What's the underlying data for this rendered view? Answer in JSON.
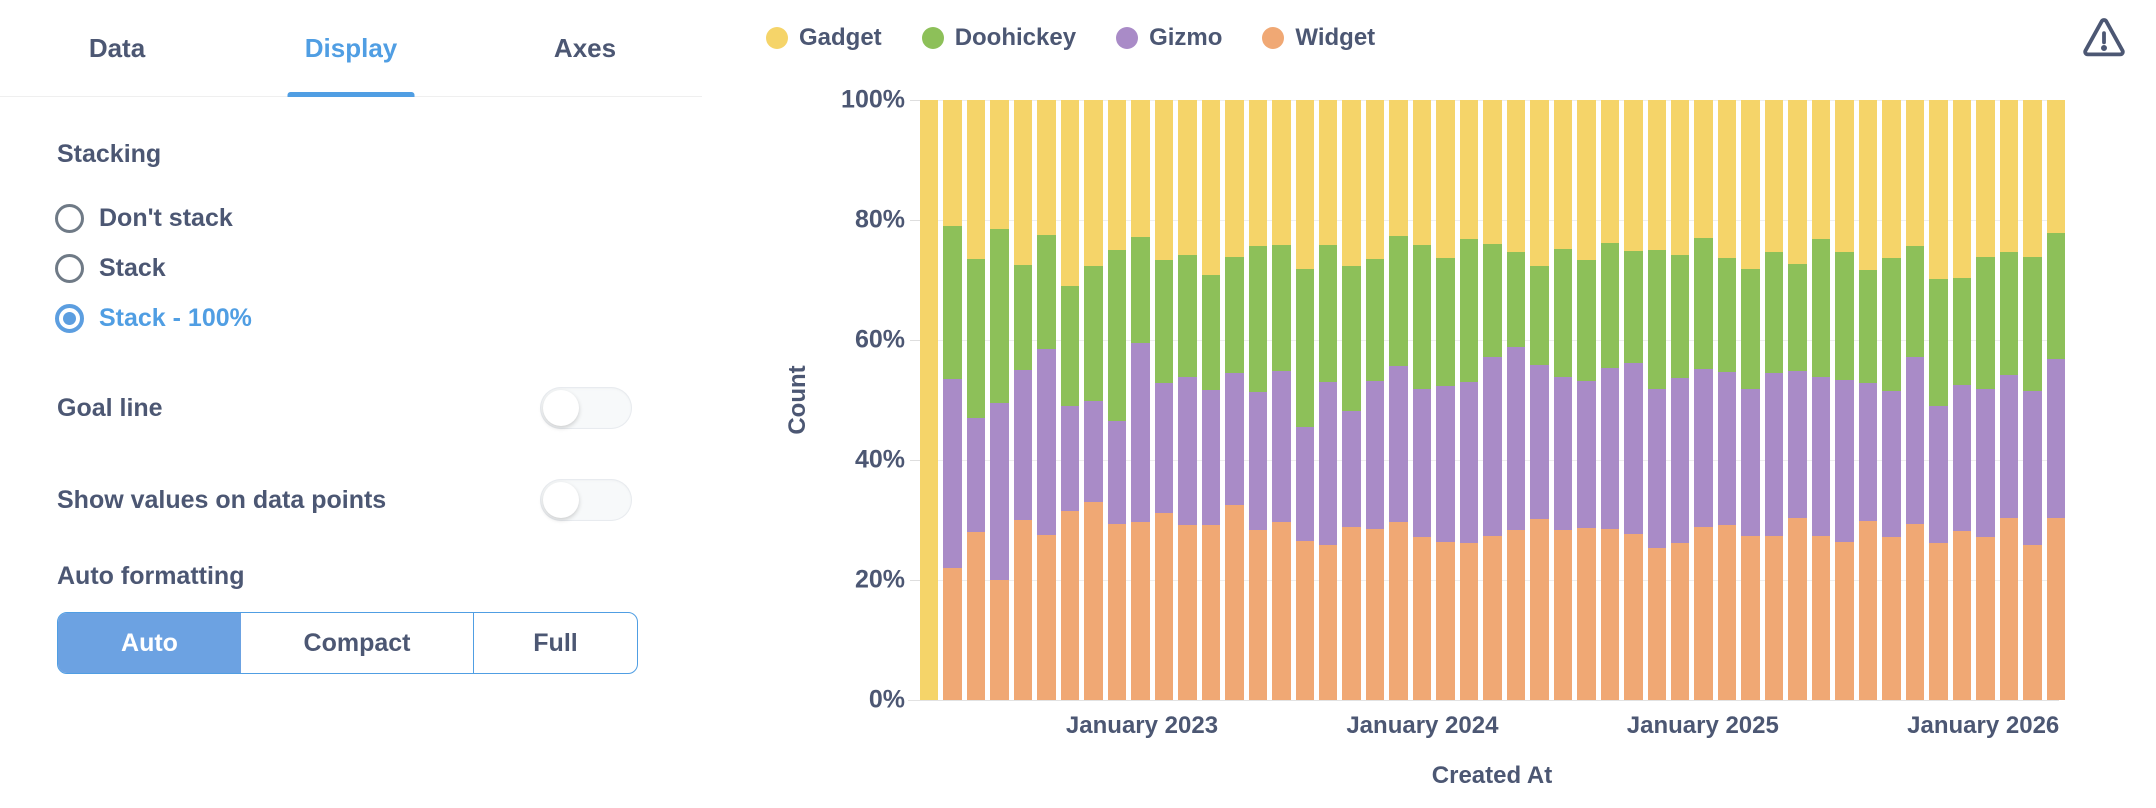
{
  "colors": {
    "accent_blue": "#509EE3",
    "selected_segment_blue": "#6CA2E2",
    "text_dark": "#4C5773",
    "gadget_yellow": "#F5D469",
    "doohickey_green": "#8DC059",
    "gizmo_purple": "#A98BC7",
    "widget_orange": "#F0A874"
  },
  "panel": {
    "tabs": [
      {
        "label": "Data",
        "active": false
      },
      {
        "label": "Display",
        "active": true
      },
      {
        "label": "Axes",
        "active": false
      }
    ],
    "stacking": {
      "label": "Stacking",
      "options": [
        {
          "label": "Don't stack",
          "selected": false
        },
        {
          "label": "Stack",
          "selected": false
        },
        {
          "label": "Stack - 100%",
          "selected": true
        }
      ]
    },
    "toggles": [
      {
        "label": "Goal line",
        "on": false
      },
      {
        "label": "Show values on data points",
        "on": false
      }
    ],
    "formatting": {
      "label": "Auto formatting",
      "options": [
        {
          "label": "Auto",
          "selected": true
        },
        {
          "label": "Compact",
          "selected": false
        },
        {
          "label": "Full",
          "selected": false
        }
      ]
    }
  },
  "chart_data": {
    "type": "bar",
    "stacking": "100%",
    "legend_position": "top-left",
    "grid": true,
    "xlabel": "Created At",
    "ylabel": "Count",
    "y_axis": {
      "title": "Count",
      "ticks": [
        "100%",
        "80%",
        "60%",
        "40%",
        "20%",
        "0%"
      ],
      "range": [
        0,
        100
      ]
    },
    "x_axis": {
      "title": "Created At",
      "bar_count": 49,
      "labels": [
        {
          "text": "January 2023",
          "index": 9
        },
        {
          "text": "January 2024",
          "index": 21
        },
        {
          "text": "January 2025",
          "index": 33
        },
        {
          "text": "January 2026",
          "index": 45
        }
      ]
    },
    "legend": [
      {
        "name": "Gadget",
        "color": "#F5D469"
      },
      {
        "name": "Doohickey",
        "color": "#8DC059"
      },
      {
        "name": "Gizmo",
        "color": "#A98BC7"
      },
      {
        "name": "Widget",
        "color": "#F0A874"
      }
    ],
    "stack_order_bottom_to_top": [
      "Widget",
      "Gizmo",
      "Doohickey",
      "Gadget"
    ],
    "series": [
      {
        "name": "Gadget",
        "color": "#F5D469",
        "values": [
          100,
          21,
          26.5,
          21.5,
          27.5,
          22.5,
          31,
          27.7,
          25,
          22.8,
          26.7,
          25.9,
          29.2,
          26.2,
          24.4,
          24.2,
          28.1,
          24.1,
          27.7,
          26.5,
          22.6,
          24.2,
          26.4,
          23.1,
          24,
          25.4,
          27.7,
          24.9,
          26.7,
          23.8,
          25.1,
          25,
          25.9,
          23,
          26.4,
          28.1,
          25.3,
          27.4,
          23.1,
          25.4,
          28.4,
          26.4,
          24.3,
          29.9,
          29.6,
          26.2,
          25.4,
          26.1,
          22.1
        ]
      },
      {
        "name": "Doohickey",
        "color": "#8DC059",
        "values": [
          0,
          25.5,
          26.5,
          29,
          17.5,
          19,
          20,
          22.5,
          28.5,
          17.7,
          20.5,
          20.2,
          19.2,
          19.3,
          24.3,
          20.9,
          26.4,
          22.9,
          24.2,
          20.4,
          21.8,
          24,
          21.3,
          23.9,
          18.8,
          15.7,
          16.5,
          21.3,
          20.2,
          20.8,
          18.8,
          23.1,
          20.5,
          21.9,
          19,
          20.1,
          20.2,
          17.8,
          23,
          21.3,
          18.8,
          22.1,
          18.6,
          21.1,
          17.9,
          21.9,
          20.5,
          22.4,
          21
        ]
      },
      {
        "name": "Gizmo",
        "color": "#A98BC7",
        "values": [
          0,
          31.5,
          19,
          29.5,
          25,
          31,
          17.5,
          16.8,
          17.1,
          29.9,
          21.6,
          24.7,
          22.4,
          22,
          23,
          25.2,
          19,
          27.1,
          19.3,
          24.6,
          25.9,
          24.7,
          26,
          26.9,
          29.8,
          30.5,
          25.6,
          25.5,
          24.4,
          26.9,
          28.4,
          26.5,
          27.5,
          26.3,
          25.4,
          24.4,
          27.1,
          24.4,
          26.5,
          26.9,
          23,
          24.4,
          27.7,
          22.8,
          24.3,
          24.7,
          23.7,
          25.6,
          26.5
        ]
      },
      {
        "name": "Widget",
        "color": "#F0A874",
        "values": [
          0,
          22,
          28,
          20,
          30,
          27.5,
          31.5,
          33,
          29.4,
          29.6,
          31.2,
          29.2,
          29.2,
          32.5,
          28.3,
          29.7,
          26.5,
          25.9,
          28.8,
          28.5,
          29.7,
          27.1,
          26.3,
          26.1,
          27.4,
          28.4,
          30.2,
          28.3,
          28.7,
          28.5,
          27.7,
          25.4,
          26.1,
          28.8,
          29.2,
          27.4,
          27.4,
          30.4,
          27.4,
          26.4,
          29.8,
          27.1,
          29.4,
          26.2,
          28.2,
          27.2,
          30.4,
          25.9,
          30.4
        ]
      }
    ]
  }
}
